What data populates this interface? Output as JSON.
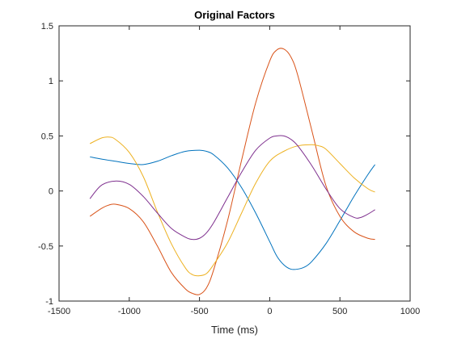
{
  "chart_data": {
    "type": "line",
    "title": "Original Factors",
    "xlabel": "Time (ms)",
    "ylabel": "",
    "xlim": [
      -1500,
      1000
    ],
    "ylim": [
      -1,
      1.5
    ],
    "xticks": [
      -1500,
      -1000,
      -500,
      0,
      500,
      1000
    ],
    "xtick_labels": [
      "-1500",
      "-1000",
      "-500",
      "0",
      "500",
      "1000"
    ],
    "yticks": [
      -1,
      -0.5,
      0,
      0.5,
      1,
      1.5
    ],
    "ytick_labels": [
      "-1",
      "-0.5",
      "0",
      "0.5",
      "1",
      "1.5"
    ],
    "grid": false,
    "legend": "none",
    "series": [
      {
        "color": "#0072BD",
        "x": [
          -1280,
          -1200,
          -1100,
          -1000,
          -900,
          -800,
          -700,
          -600,
          -500,
          -450,
          -400,
          -300,
          -200,
          -100,
          0,
          50,
          100,
          150,
          200,
          250,
          300,
          400,
          500,
          600,
          700,
          750
        ],
        "y": [
          0.31,
          0.29,
          0.27,
          0.25,
          0.24,
          0.27,
          0.32,
          0.36,
          0.37,
          0.36,
          0.33,
          0.21,
          0.03,
          -0.2,
          -0.46,
          -0.59,
          -0.67,
          -0.71,
          -0.71,
          -0.69,
          -0.64,
          -0.48,
          -0.27,
          -0.05,
          0.15,
          0.24
        ]
      },
      {
        "color": "#D95319",
        "x": [
          -1280,
          -1200,
          -1150,
          -1100,
          -1000,
          -900,
          -800,
          -700,
          -600,
          -550,
          -500,
          -450,
          -400,
          -300,
          -200,
          -100,
          0,
          50,
          100,
          150,
          200,
          300,
          400,
          500,
          600,
          700,
          750
        ],
        "y": [
          -0.23,
          -0.16,
          -0.13,
          -0.12,
          -0.16,
          -0.28,
          -0.5,
          -0.74,
          -0.89,
          -0.93,
          -0.94,
          -0.88,
          -0.72,
          -0.27,
          0.28,
          0.8,
          1.18,
          1.28,
          1.29,
          1.22,
          1.05,
          0.55,
          0.05,
          -0.23,
          -0.37,
          -0.43,
          -0.44
        ]
      },
      {
        "color": "#EDB120",
        "x": [
          -1280,
          -1200,
          -1150,
          -1100,
          -1000,
          -900,
          -800,
          -700,
          -600,
          -550,
          -500,
          -450,
          -400,
          -300,
          -200,
          -100,
          0,
          100,
          200,
          300,
          350,
          400,
          500,
          600,
          700,
          750
        ],
        "y": [
          0.43,
          0.48,
          0.49,
          0.47,
          0.35,
          0.13,
          -0.19,
          -0.48,
          -0.7,
          -0.76,
          -0.77,
          -0.75,
          -0.67,
          -0.47,
          -0.2,
          0.07,
          0.27,
          0.36,
          0.41,
          0.42,
          0.41,
          0.38,
          0.25,
          0.12,
          0.02,
          -0.01
        ]
      },
      {
        "color": "#7E2F8E",
        "x": [
          -1280,
          -1200,
          -1100,
          -1000,
          -900,
          -800,
          -700,
          -600,
          -550,
          -500,
          -450,
          -400,
          -300,
          -200,
          -100,
          0,
          50,
          100,
          150,
          200,
          300,
          400,
          500,
          600,
          650,
          700,
          750
        ],
        "y": [
          -0.07,
          0.05,
          0.09,
          0.06,
          -0.05,
          -0.2,
          -0.34,
          -0.42,
          -0.44,
          -0.43,
          -0.38,
          -0.29,
          -0.06,
          0.17,
          0.37,
          0.48,
          0.5,
          0.5,
          0.47,
          0.41,
          0.23,
          0.02,
          -0.16,
          -0.24,
          -0.24,
          -0.21,
          -0.17
        ]
      }
    ]
  }
}
